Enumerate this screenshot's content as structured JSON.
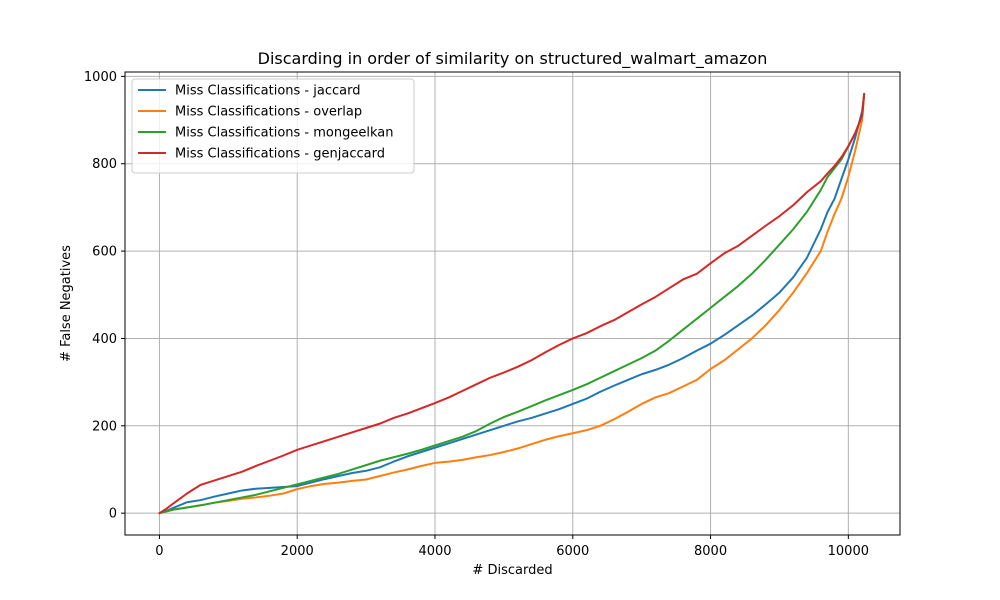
{
  "chart_data": {
    "type": "line",
    "title": "Discarding in order of similarity on structured_walmart_amazon",
    "xlabel": "# Discarded",
    "ylabel": "# False Negatives",
    "xlim": [
      -500,
      10750
    ],
    "ylim": [
      -50,
      1010
    ],
    "xticks": [
      0,
      2000,
      4000,
      6000,
      8000,
      10000
    ],
    "yticks": [
      0,
      200,
      400,
      600,
      800,
      1000
    ],
    "grid": true,
    "legend_position": "top-left",
    "series": [
      {
        "name": "Miss Classifications - jaccard",
        "color": "#1f77b4",
        "x": [
          0,
          100,
          200,
          400,
          600,
          800,
          1000,
          1200,
          1400,
          1600,
          1800,
          2000,
          2200,
          2400,
          2600,
          2800,
          3000,
          3200,
          3400,
          3600,
          3800,
          4000,
          4200,
          4400,
          4600,
          4800,
          5000,
          5200,
          5400,
          5600,
          5800,
          6000,
          6200,
          6400,
          6600,
          6800,
          7000,
          7200,
          7400,
          7600,
          7800,
          8000,
          8200,
          8400,
          8600,
          8800,
          9000,
          9200,
          9400,
          9600,
          9700,
          9800,
          9900,
          10000,
          10100,
          10200,
          10230
        ],
        "values": [
          0,
          5,
          12,
          25,
          30,
          38,
          45,
          52,
          56,
          58,
          60,
          62,
          70,
          78,
          85,
          92,
          97,
          105,
          118,
          130,
          140,
          150,
          160,
          170,
          180,
          190,
          200,
          210,
          218,
          228,
          238,
          250,
          262,
          278,
          292,
          305,
          318,
          328,
          340,
          355,
          372,
          388,
          408,
          430,
          452,
          478,
          505,
          540,
          585,
          650,
          690,
          720,
          765,
          810,
          860,
          920,
          960
        ]
      },
      {
        "name": "Miss Classifications - overlap",
        "color": "#ff7f0e",
        "x": [
          0,
          100,
          200,
          400,
          600,
          800,
          1000,
          1200,
          1400,
          1600,
          1800,
          2000,
          2200,
          2400,
          2600,
          2800,
          3000,
          3200,
          3400,
          3600,
          3800,
          4000,
          4200,
          4400,
          4600,
          4800,
          5000,
          5200,
          5400,
          5600,
          5800,
          6000,
          6200,
          6400,
          6600,
          6800,
          7000,
          7200,
          7400,
          7600,
          7800,
          8000,
          8200,
          8400,
          8600,
          8800,
          9000,
          9200,
          9400,
          9600,
          9700,
          9800,
          9900,
          10000,
          10100,
          10200,
          10230
        ],
        "values": [
          0,
          4,
          8,
          13,
          18,
          24,
          28,
          33,
          36,
          40,
          45,
          55,
          62,
          67,
          70,
          74,
          77,
          85,
          93,
          100,
          108,
          115,
          118,
          122,
          128,
          133,
          140,
          148,
          158,
          168,
          176,
          183,
          190,
          200,
          215,
          232,
          250,
          265,
          275,
          290,
          305,
          330,
          350,
          375,
          400,
          430,
          465,
          505,
          550,
          600,
          645,
          685,
          720,
          770,
          830,
          900,
          960
        ]
      },
      {
        "name": "Miss Classifications - mongeelkan",
        "color": "#2ca02c",
        "x": [
          0,
          100,
          200,
          400,
          600,
          800,
          1000,
          1200,
          1400,
          1600,
          1800,
          2000,
          2200,
          2400,
          2600,
          2800,
          3000,
          3200,
          3400,
          3600,
          3800,
          4000,
          4200,
          4400,
          4600,
          4800,
          5000,
          5200,
          5400,
          5600,
          5800,
          6000,
          6200,
          6400,
          6600,
          6800,
          7000,
          7200,
          7400,
          7600,
          7800,
          8000,
          8200,
          8400,
          8600,
          8800,
          9000,
          9200,
          9400,
          9600,
          9700,
          9800,
          9900,
          10000,
          10100,
          10200,
          10230
        ],
        "values": [
          0,
          4,
          8,
          13,
          18,
          24,
          30,
          36,
          42,
          50,
          58,
          66,
          74,
          82,
          90,
          100,
          110,
          120,
          128,
          136,
          145,
          155,
          165,
          175,
          188,
          205,
          220,
          232,
          245,
          258,
          270,
          282,
          295,
          310,
          325,
          340,
          355,
          372,
          395,
          420,
          445,
          470,
          495,
          520,
          548,
          580,
          615,
          650,
          690,
          740,
          770,
          790,
          810,
          840,
          870,
          910,
          960
        ]
      },
      {
        "name": "Miss Classifications - genjaccard",
        "color": "#d62728",
        "x": [
          0,
          100,
          200,
          400,
          600,
          800,
          1000,
          1200,
          1400,
          1600,
          1800,
          2000,
          2200,
          2400,
          2600,
          2800,
          3000,
          3200,
          3400,
          3600,
          3800,
          4000,
          4200,
          4400,
          4600,
          4800,
          5000,
          5200,
          5400,
          5600,
          5800,
          6000,
          6200,
          6400,
          6600,
          6800,
          7000,
          7200,
          7400,
          7600,
          7800,
          8000,
          8200,
          8400,
          8600,
          8800,
          9000,
          9200,
          9400,
          9600,
          9700,
          9800,
          9900,
          10000,
          10100,
          10200,
          10230
        ],
        "values": [
          0,
          10,
          22,
          45,
          65,
          75,
          85,
          95,
          108,
          120,
          132,
          145,
          155,
          165,
          175,
          185,
          195,
          205,
          218,
          228,
          240,
          252,
          265,
          280,
          295,
          310,
          322,
          335,
          350,
          368,
          385,
          400,
          412,
          428,
          442,
          460,
          478,
          495,
          515,
          535,
          548,
          572,
          595,
          612,
          635,
          658,
          680,
          705,
          735,
          760,
          778,
          795,
          815,
          840,
          870,
          910,
          960
        ]
      }
    ]
  }
}
